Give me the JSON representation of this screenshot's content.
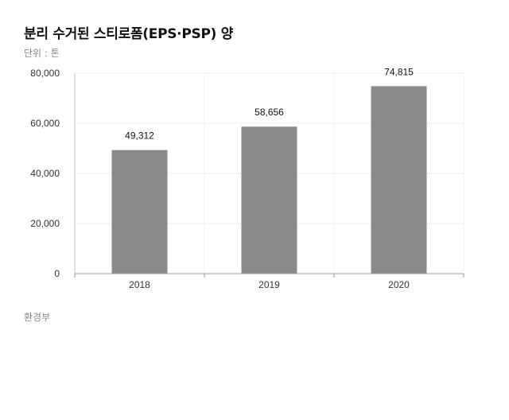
{
  "header": {
    "title": "분리 수거된 스티로폼(EPS·PSP) 양",
    "unit": "단위 : 톤"
  },
  "footer": {
    "source": "환경부"
  },
  "chart_data": {
    "type": "bar",
    "categories": [
      "2018",
      "2019",
      "2020"
    ],
    "values": [
      49312,
      58656,
      74815
    ],
    "value_labels": [
      "49,312",
      "58,656",
      "74,815"
    ],
    "yticks": [
      "0",
      "20,000",
      "40,000",
      "60,000",
      "80,000"
    ],
    "ylim": [
      0,
      80000
    ],
    "bar_color": "#8a8a8a",
    "grid": true
  }
}
